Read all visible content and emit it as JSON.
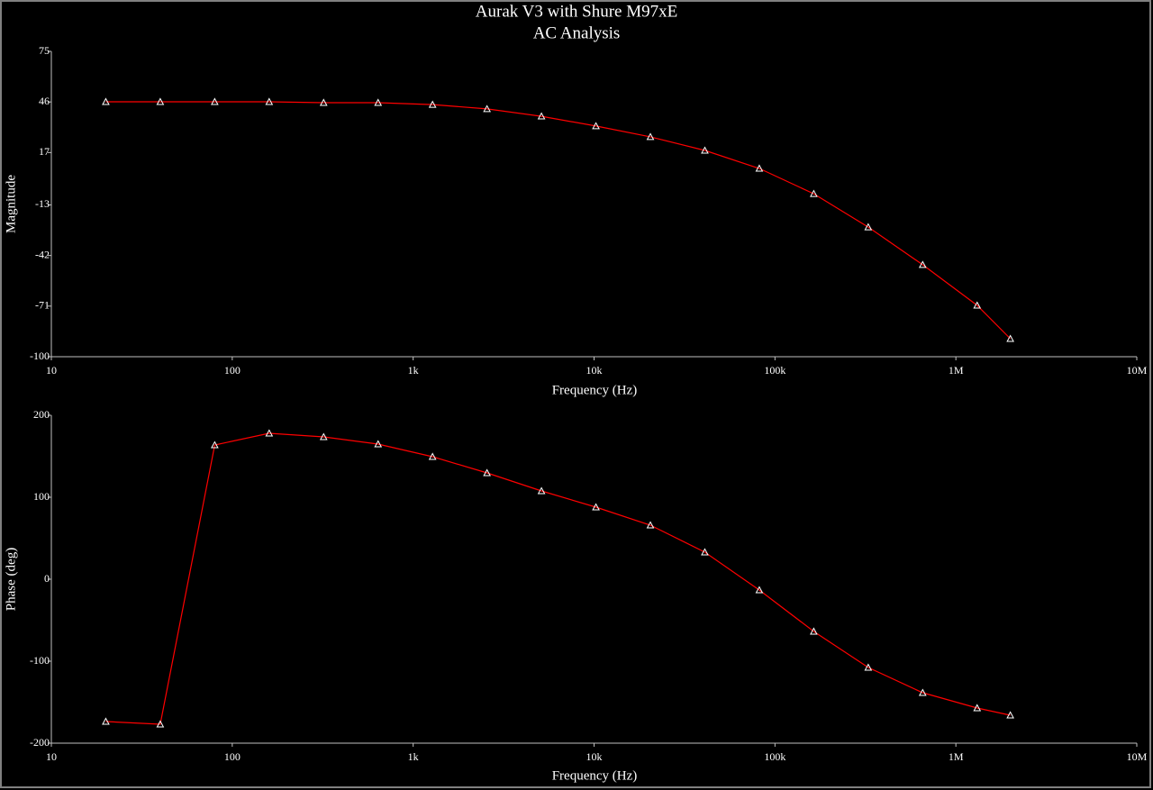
{
  "chart_data": [
    {
      "type": "line",
      "title": "Aurak V3 with Shure M97xE",
      "subtitle": "AC Analysis",
      "x_label": "Frequency (Hz)",
      "y_label": "Magnitude",
      "xscale": "log",
      "xlim": [
        10,
        10000000
      ],
      "xticks": [
        10,
        100,
        {
          "value": 1000,
          "label": "1k"
        },
        {
          "value": 10000,
          "label": "10k"
        },
        {
          "value": 100000,
          "label": "100k"
        },
        {
          "value": 1000000,
          "label": "1M"
        },
        {
          "value": 10000000,
          "label": "10M"
        }
      ],
      "ylim": [
        -100,
        75
      ],
      "yticks": [
        75,
        46,
        17,
        -13,
        -42,
        -71,
        -100
      ],
      "x": [
        20,
        40,
        80,
        160,
        320,
        640,
        1280,
        2560,
        5120,
        10240,
        20480,
        40960,
        81920,
        163840,
        327680,
        655360,
        1310720,
        2000000
      ],
      "series": [
        {
          "color": "#ff0000",
          "marker_color": "#ffffff",
          "values": [
            46.1,
            46.1,
            46.1,
            46.1,
            45.6,
            45.6,
            44.5,
            42.0,
            37.8,
            32.2,
            26.0,
            18.2,
            7.9,
            -6.6,
            -25.7,
            -47.3,
            -70.6,
            -89.7
          ]
        }
      ]
    },
    {
      "type": "line",
      "x_label": "Frequency (Hz)",
      "y_label": "Phase (deg)",
      "xscale": "log",
      "xlim": [
        10,
        10000000
      ],
      "xticks": [
        10,
        100,
        {
          "value": 1000,
          "label": "1k"
        },
        {
          "value": 10000,
          "label": "10k"
        },
        {
          "value": 100000,
          "label": "100k"
        },
        {
          "value": 1000000,
          "label": "1M"
        },
        {
          "value": 10000000,
          "label": "10M"
        }
      ],
      "ylim": [
        -200,
        200
      ],
      "yticks": [
        200,
        100,
        0,
        -100,
        -200
      ],
      "x": [
        20,
        40,
        80,
        160,
        320,
        640,
        1280,
        2560,
        5120,
        10240,
        20480,
        40960,
        81920,
        163840,
        327680,
        655360,
        1310720,
        2000000
      ],
      "series": [
        {
          "color": "#ff0000",
          "marker_color": "#ffffff",
          "values": [
            -173.6,
            -176.9,
            163.7,
            178.0,
            173.6,
            164.8,
            149.5,
            129.7,
            107.7,
            87.9,
            65.9,
            33.0,
            -13.2,
            -63.7,
            -107.7,
            -138.5,
            -157.1,
            -165.9
          ]
        }
      ]
    }
  ]
}
